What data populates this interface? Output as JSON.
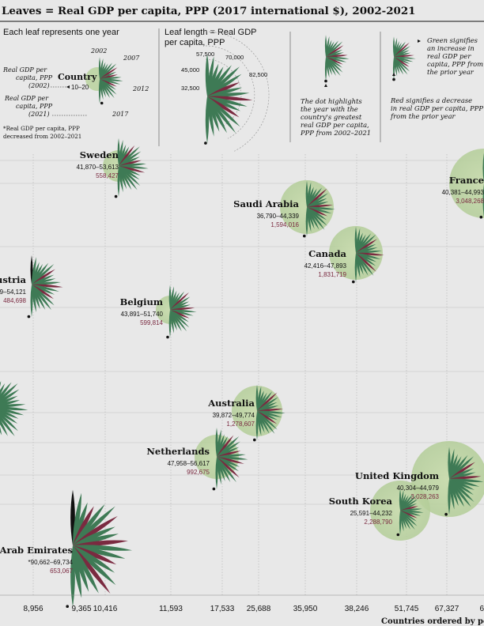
{
  "title": "Leaves = Real GDP per capita, PPP (2017 international $), 2002-2021",
  "legend": {
    "panel1": {
      "heading": "Each leaf represents one year",
      "years": [
        "2002",
        "2007",
        "2012",
        "2017"
      ],
      "country": "Country",
      "range": "10–20",
      "gdp2002": [
        "Real GDP per",
        "capita, PPP",
        "(2002)"
      ],
      "gdp2021": [
        "Real GDP per",
        "capita, PPP",
        "(2021)"
      ],
      "footnote": [
        "*Real GDP per capita, PPP",
        "decreased from 2002–2021"
      ]
    },
    "panel2": {
      "heading": [
        "Leaf length = Real GDP",
        "per capita, PPP"
      ],
      "scale": [
        "32,500",
        "45,000",
        "57,500",
        "70,000",
        "82,500"
      ]
    },
    "panel3": {
      "text": [
        "The dot highlights",
        "the year with the",
        "country's greatest",
        "real GDP per capita,",
        "PPP from 2002–2021"
      ]
    },
    "panel4": {
      "green": [
        "Green signifies",
        "an increase in",
        "real GDP per",
        "capita, PPP from",
        "the prior year"
      ],
      "red": [
        "Red signifies a decrease",
        "in real GDP per capita, PPP",
        "from the prior year"
      ]
    }
  },
  "colors": {
    "increase": "#3e7a55",
    "decrease": "#7a2a40",
    "circle": "#b7d19c",
    "background": "#e8e8e8",
    "black": "#111111"
  },
  "chart_data": {
    "type": "scatter",
    "xlabel": "Countries ordered by po",
    "x_ticks": [
      "",
      "8,956",
      "9,365",
      "10,416",
      "11,593",
      "17,533",
      "25,688",
      "35,950",
      "38,246",
      "51,745",
      "67,327",
      "6"
    ],
    "countries": [
      {
        "name": "Sweden",
        "range": "41,870–53,613",
        "value": "558,427"
      },
      {
        "name": "France",
        "range": "40,381–44,993",
        "value": "3,048,268"
      },
      {
        "name": "Saudi Arabia",
        "range": "36,790–44,339",
        "value": "1,594,016"
      },
      {
        "name": "Canada",
        "range": "42,416–47,893",
        "value": "1,831,719"
      },
      {
        "name": "ustria",
        "range": "9–54,121",
        "value": "484,698"
      },
      {
        "name": "Belgium",
        "range": "43,891–51,740",
        "value": "599,814"
      },
      {
        "name": "Australia",
        "range": "39,872–49,774",
        "value": "1,278,607"
      },
      {
        "name": "Netherlands",
        "range": "47,958–56,617",
        "value": "992,675"
      },
      {
        "name": "United Kingdom",
        "range": "40,304–44,979",
        "value": "3,028,263"
      },
      {
        "name": "South Korea",
        "range": "25,591–44,232",
        "value": "2,288,790"
      },
      {
        "name": "Arab Emirates",
        "range": "*90,662–69,734",
        "value": "653,067"
      }
    ]
  }
}
